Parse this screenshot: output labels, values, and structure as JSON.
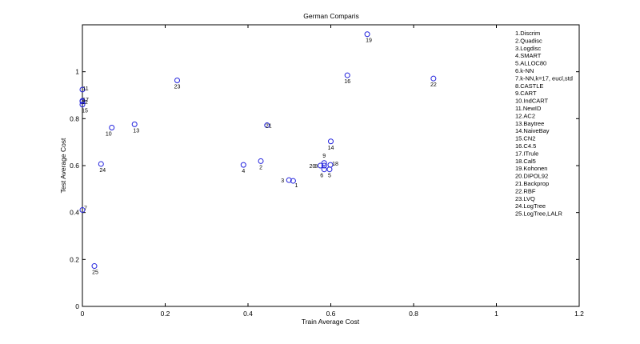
{
  "chart_data": {
    "type": "scatter",
    "title": "German Comparis",
    "xlabel": "Train Average Cost",
    "ylabel": "Test Average Cost",
    "xlim": [
      0,
      1.2
    ],
    "ylim": [
      0,
      1.2
    ],
    "xticks": [
      "0",
      "0.2",
      "0.4",
      "0.6",
      "0.8",
      "1",
      "1.2"
    ],
    "yticks": [
      "0",
      "0.2",
      "0.4",
      "0.6",
      "0.8",
      "1"
    ],
    "point_color": "#2222dd",
    "legend_position": "top-right",
    "legend": [
      "1.Discrim",
      "2.Quadisc",
      "3.Logdisc",
      "4.SMART",
      "5.ALLOC80",
      "6.k-NN",
      "7.k-NN,k=17, eucl,std",
      "8.CASTLE",
      "9.CART",
      "10.IndCART",
      "11.NewID",
      "12.AC2",
      "13.Baytree",
      "14.NaiveBay",
      "15.CN2",
      "16.C4.5",
      "17.ITrule",
      "18.Cal5",
      "19.Kohonen",
      "20.DIPOL92",
      "21.Backprop",
      "22.RBF",
      "23.LVQ",
      "24.LogTree",
      "25.LogTree,LALR"
    ],
    "points": [
      {
        "label": "1",
        "x": 0.509,
        "y": 0.535
      },
      {
        "label": "2",
        "x": 0.431,
        "y": 0.619
      },
      {
        "label": "3",
        "x": 0.499,
        "y": 0.538
      },
      {
        "label": "4",
        "x": 0.389,
        "y": 0.603
      },
      {
        "label": "5",
        "x": 0.597,
        "y": 0.584
      },
      {
        "label": "6",
        "x": 0.584,
        "y": 0.584
      },
      {
        "label": "7",
        "x": 0.0,
        "y": 0.411
      },
      {
        "label": "8",
        "x": 0.584,
        "y": 0.6
      },
      {
        "label": "9",
        "x": 0.584,
        "y": 0.611
      },
      {
        "label": "10",
        "x": 0.071,
        "y": 0.762
      },
      {
        "label": "11",
        "x": 0.0,
        "y": 0.924
      },
      {
        "label": "12",
        "x": 0.0,
        "y": 0.873
      },
      {
        "label": "13",
        "x": 0.126,
        "y": 0.776
      },
      {
        "label": "14",
        "x": 0.6,
        "y": 0.703
      },
      {
        "label": "15",
        "x": 0.0,
        "y": 0.86
      },
      {
        "label": "16",
        "x": 0.64,
        "y": 0.985
      },
      {
        "label": "17",
        "x": 0.0,
        "y": 0.876
      },
      {
        "label": "18",
        "x": 0.599,
        "y": 0.603
      },
      {
        "label": "19",
        "x": 0.688,
        "y": 1.16
      },
      {
        "label": "20",
        "x": 0.575,
        "y": 0.6
      },
      {
        "label": "21",
        "x": 0.446,
        "y": 0.772
      },
      {
        "label": "22",
        "x": 0.848,
        "y": 0.971
      },
      {
        "label": "23",
        "x": 0.229,
        "y": 0.963
      },
      {
        "label": "24",
        "x": 0.045,
        "y": 0.607
      },
      {
        "label": "25",
        "x": 0.029,
        "y": 0.172
      }
    ]
  }
}
